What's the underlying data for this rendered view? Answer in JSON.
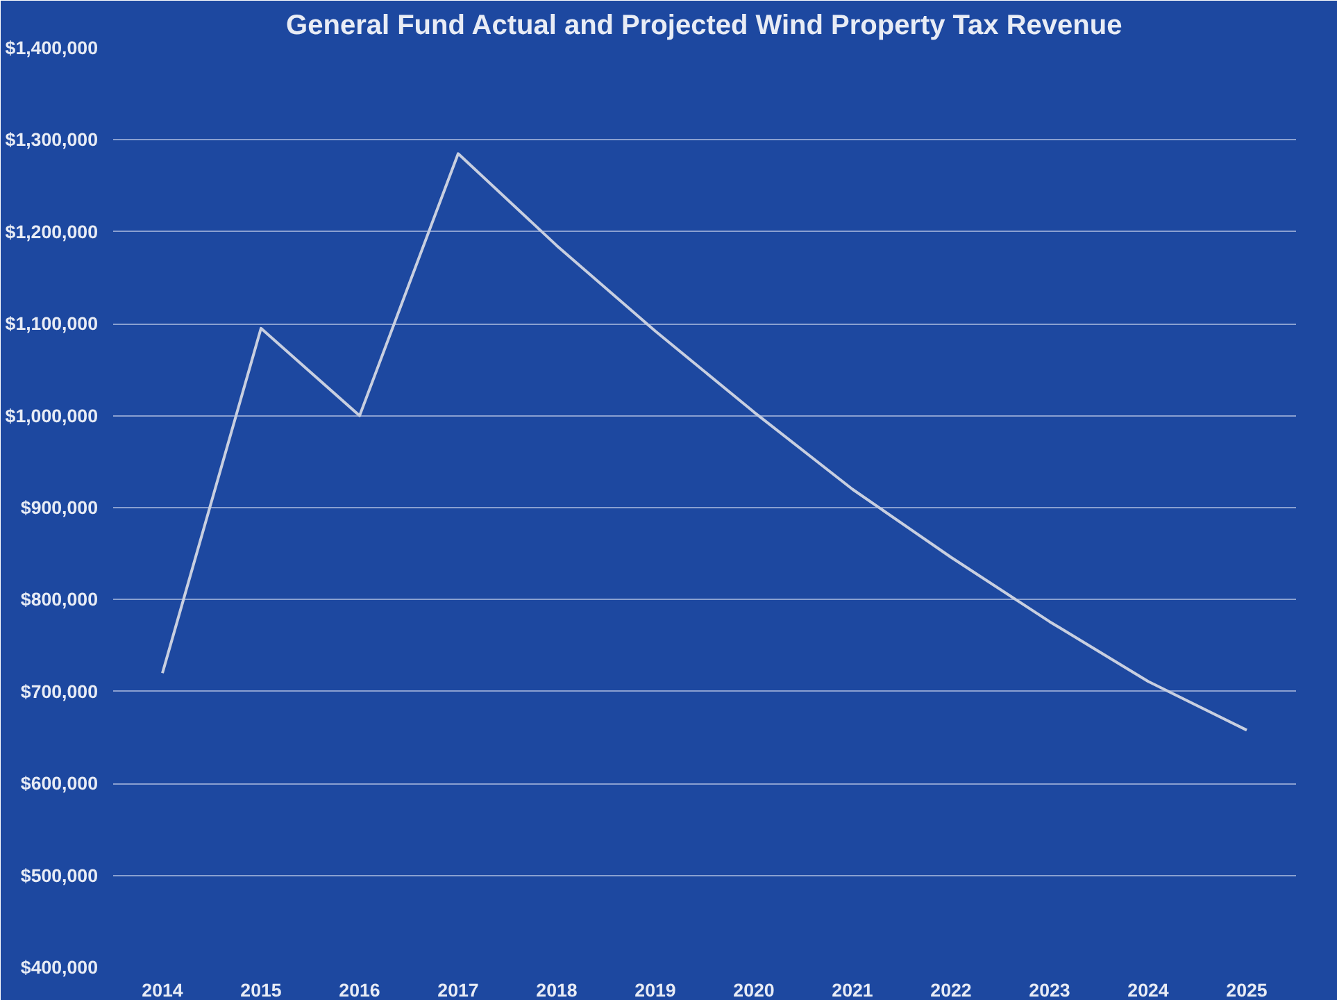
{
  "chart_data": {
    "type": "line",
    "title": "General Fund Actual and Projected Wind Property Tax Revenue",
    "categories": [
      "2014",
      "2015",
      "2016",
      "2017",
      "2018",
      "2019",
      "2020",
      "2021",
      "2022",
      "2023",
      "2024",
      "2025"
    ],
    "series": [
      {
        "color": "#c8cfe0",
        "values": [
          720000,
          1095000,
          1000000,
          1285000,
          1185000,
          1092000,
          1004000,
          920000,
          846000,
          776000,
          711000,
          658000
        ]
      }
    ],
    "ylim": [
      400000,
      1400000
    ],
    "yticks": [
      {
        "value": 400000,
        "label": "$400,000"
      },
      {
        "value": 500000,
        "label": "$500,000"
      },
      {
        "value": 600000,
        "label": "$600,000"
      },
      {
        "value": 700000,
        "label": "$700,000"
      },
      {
        "value": 800000,
        "label": "$800,000"
      },
      {
        "value": 900000,
        "label": "$900,000"
      },
      {
        "value": 1000000,
        "label": "$1,000,000"
      },
      {
        "value": 1100000,
        "label": "$1,100,000"
      },
      {
        "value": 1200000,
        "label": "$1,200,000"
      },
      {
        "value": 1300000,
        "label": "$1,300,000"
      },
      {
        "value": 1400000,
        "label": "$1,400,000"
      }
    ],
    "grid": "y",
    "marker": "none",
    "line_style": "solid"
  }
}
